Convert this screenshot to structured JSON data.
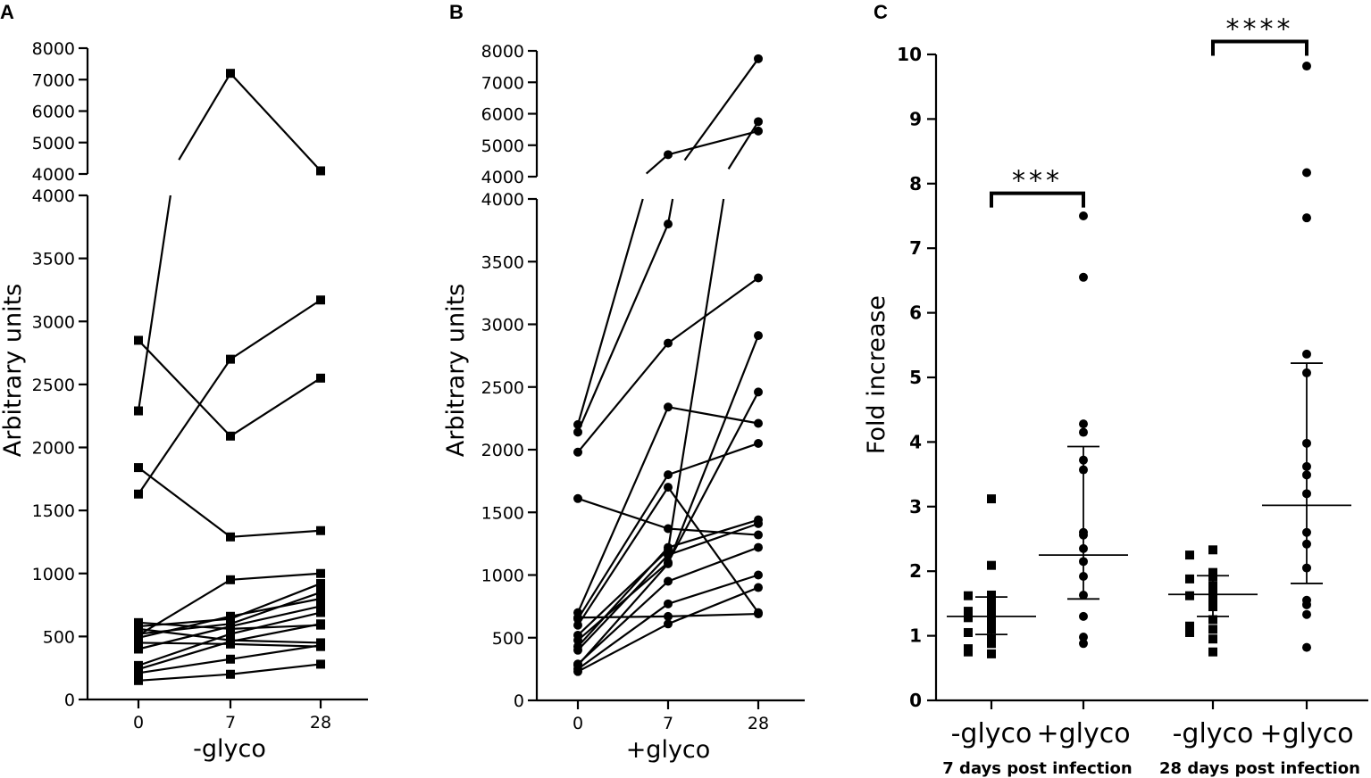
{
  "chart_data": [
    {
      "panel": "A",
      "type": "line",
      "title": "",
      "xlabel": "-glyco",
      "ylabel": "Arbitrary units",
      "x": [
        0,
        7,
        28
      ],
      "x_tick_labels": [
        "0",
        "7",
        "28"
      ],
      "y_break": true,
      "ylim_lower": [
        0,
        4000
      ],
      "ylim_upper": [
        4000,
        8000
      ],
      "y_ticks_lower": [
        "0",
        "500",
        "1000",
        "1500",
        "2000",
        "2500",
        "3000",
        "3500",
        "4000"
      ],
      "y_ticks_upper": [
        "4000",
        "5000",
        "6000",
        "7000",
        "8000"
      ],
      "marker": "square",
      "series": [
        {
          "values": [
            2290,
            7200,
            4100
          ]
        },
        {
          "values": [
            2850,
            2090,
            2550
          ]
        },
        {
          "values": [
            1630,
            2700,
            3170
          ]
        },
        {
          "values": [
            1840,
            1290,
            1340
          ]
        },
        {
          "values": [
            510,
            950,
            1000
          ]
        },
        {
          "values": [
            610,
            560,
            590
          ]
        },
        {
          "values": [
            580,
            640,
            920
          ]
        },
        {
          "values": [
            560,
            470,
            450
          ]
        },
        {
          "values": [
            520,
            600,
            850
          ]
        },
        {
          "values": [
            490,
            660,
            800
          ]
        },
        {
          "values": [
            450,
            440,
            420
          ]
        },
        {
          "values": [
            400,
            580,
            740
          ]
        },
        {
          "values": [
            270,
            520,
            690
          ]
        },
        {
          "values": [
            240,
            460,
            600
          ]
        },
        {
          "values": [
            210,
            320,
            430
          ]
        },
        {
          "values": [
            150,
            200,
            280
          ]
        }
      ]
    },
    {
      "panel": "B",
      "type": "line",
      "title": "",
      "xlabel": "+glyco",
      "ylabel": "Arbitrary units",
      "x": [
        0,
        7,
        28
      ],
      "x_tick_labels": [
        "0",
        "7",
        "28"
      ],
      "y_break": true,
      "ylim_lower": [
        0,
        4000
      ],
      "ylim_upper": [
        4000,
        8000
      ],
      "y_ticks_lower": [
        "0",
        "500",
        "1000",
        "1500",
        "2000",
        "2500",
        "3000",
        "3500",
        "4000"
      ],
      "y_ticks_upper": [
        "4000",
        "5000",
        "6000",
        "7000",
        "8000"
      ],
      "marker": "circle",
      "series": [
        {
          "values": [
            2200,
            4700,
            5450
          ]
        },
        {
          "values": [
            2140,
            3800,
            7750
          ]
        },
        {
          "values": [
            1980,
            2850,
            3370
          ]
        },
        {
          "values": [
            1610,
            1370,
            1320
          ]
        },
        {
          "values": [
            700,
            2340,
            2210
          ]
        },
        {
          "values": [
            650,
            1800,
            2050
          ]
        },
        {
          "values": [
            600,
            1700,
            700
          ]
        },
        {
          "values": [
            520,
            1200,
            5750
          ]
        },
        {
          "values": [
            480,
            1100,
            2460
          ]
        },
        {
          "values": [
            430,
            1220,
            1440
          ]
        },
        {
          "values": [
            400,
            1160,
            1410
          ]
        },
        {
          "values": [
            290,
            950,
            1220
          ]
        },
        {
          "values": [
            250,
            770,
            1000
          ]
        },
        {
          "values": [
            230,
            610,
            900
          ]
        },
        {
          "values": [
            660,
            670,
            690
          ]
        },
        {
          "values": [
            280,
            1090,
            2910
          ]
        }
      ]
    },
    {
      "panel": "C",
      "type": "scatter",
      "title": "",
      "xlabel": "",
      "ylabel": "Fold increase",
      "ylim": [
        0,
        10
      ],
      "y_ticks": [
        "0",
        "1",
        "2",
        "3",
        "4",
        "5",
        "6",
        "7",
        "8",
        "9",
        "10"
      ],
      "categories": [
        "-glyco",
        "+glyco",
        "-glyco",
        "+glyco"
      ],
      "group_labels": [
        "7 days post infection",
        "28 days post infection"
      ],
      "series": [
        {
          "name": "-glyco 7 days",
          "marker": "square",
          "mean": 1.3,
          "sd_low": 1.02,
          "sd_high": 1.6,
          "points": [
            3.12,
            2.09,
            1.63,
            1.62,
            1.52,
            1.45,
            1.38,
            1.32,
            1.28,
            1.2,
            1.1,
            1.05,
            0.95,
            0.88,
            0.8,
            0.72,
            0.75
          ]
        },
        {
          "name": "+glyco 7 days",
          "marker": "circle",
          "mean": 2.25,
          "sd_low": 1.57,
          "sd_high": 3.93,
          "points": [
            7.5,
            6.55,
            4.28,
            4.15,
            3.72,
            3.57,
            2.6,
            2.56,
            2.35,
            2.15,
            1.92,
            1.63,
            1.3,
            0.98,
            0.88
          ]
        },
        {
          "name": "-glyco 28 days",
          "marker": "square",
          "mean": 1.64,
          "sd_low": 1.3,
          "sd_high": 1.93,
          "points": [
            2.33,
            2.25,
            1.98,
            1.92,
            1.88,
            1.78,
            1.68,
            1.62,
            1.55,
            1.45,
            1.25,
            1.15,
            1.1,
            1.05,
            0.95,
            0.75
          ]
        },
        {
          "name": "+glyco 28 days",
          "marker": "circle",
          "mean": 3.02,
          "sd_low": 1.81,
          "sd_high": 5.22,
          "points": [
            9.82,
            8.17,
            7.47,
            5.36,
            5.07,
            3.98,
            3.62,
            3.49,
            3.2,
            2.6,
            2.42,
            2.05,
            1.55,
            1.48,
            1.33,
            0.82
          ]
        }
      ],
      "significance": [
        {
          "between": [
            0,
            1
          ],
          "label": "***",
          "y": 7.85
        },
        {
          "between": [
            2,
            3
          ],
          "label": "****",
          "y": 10.2
        }
      ]
    }
  ]
}
